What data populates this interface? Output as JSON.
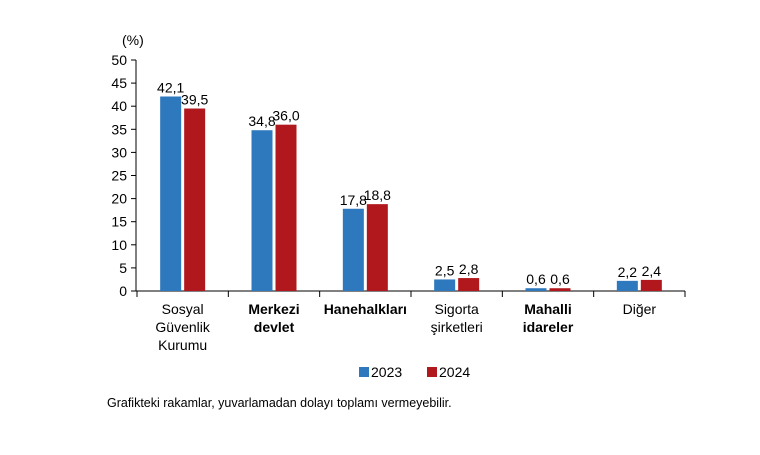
{
  "chart_data": {
    "type": "bar",
    "unit_label": "(%)",
    "ylim": [
      0,
      50
    ],
    "yticks": [
      0,
      5,
      10,
      15,
      20,
      25,
      30,
      35,
      40,
      45,
      50
    ],
    "categories": [
      {
        "lines": [
          "Sosyal",
          "Güvenlik",
          "Kurumu"
        ],
        "bold": false
      },
      {
        "lines": [
          "Merkezi",
          "devlet"
        ],
        "bold": true
      },
      {
        "lines": [
          "Hanehalkları"
        ],
        "bold": true
      },
      {
        "lines": [
          "Sigorta",
          "şirketleri"
        ],
        "bold": false
      },
      {
        "lines": [
          "Mahalli",
          "idareler"
        ],
        "bold": true
      },
      {
        "lines": [
          "Diğer"
        ],
        "bold": false
      }
    ],
    "series": [
      {
        "name": "2023",
        "color": "#2e78bd",
        "values": [
          42.1,
          34.8,
          17.8,
          2.5,
          0.6,
          2.2
        ],
        "labels": [
          "42,1",
          "34,8",
          "17,8",
          "2,5",
          "0,6",
          "2,2"
        ]
      },
      {
        "name": "2024",
        "color": "#b1181d",
        "values": [
          39.5,
          36.0,
          18.8,
          2.8,
          0.6,
          2.4
        ],
        "labels": [
          "39,5",
          "36,0",
          "18,8",
          "2,8",
          "0,6",
          "2,4"
        ]
      }
    ],
    "legend_position": "bottom-center",
    "grid": false
  },
  "footnote": "Grafikteki rakamlar, yuvarlamadan dolayı toplamı vermeyebilir."
}
